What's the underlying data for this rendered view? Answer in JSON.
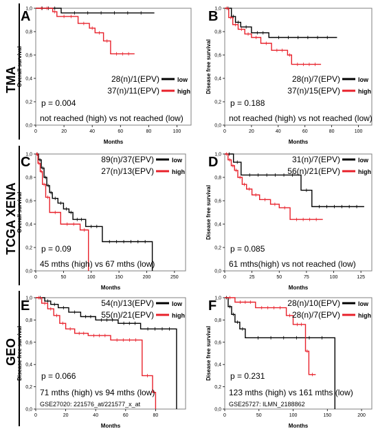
{
  "rows": [
    {
      "label": "TMA"
    },
    {
      "label": "TCGA XENA"
    },
    {
      "label": "GEO"
    }
  ],
  "colors": {
    "low": "#000000",
    "high": "#e8202a",
    "frame": "#7f7f7f"
  },
  "chart_data": [
    {
      "panel": "A",
      "type": "line",
      "ylabel": "Overall survival",
      "xlabel": "Months",
      "xlim": [
        0,
        110
      ],
      "xticks": [
        "0",
        "20",
        "40",
        "60",
        "80",
        "100"
      ],
      "xtick_values": [
        0,
        20,
        40,
        60,
        80,
        100
      ],
      "ylim": [
        0,
        1
      ],
      "yticks": [
        "0,0",
        "0,2",
        "0,4",
        "0,6",
        "0,8",
        "1,0"
      ],
      "grid": false,
      "legend": [
        {
          "name": "low",
          "counts": "28(n)/1(EPV)"
        },
        {
          "name": "high",
          "counts": "37(n)/11(EPV)"
        }
      ],
      "legend_position": "bottom-right",
      "pvalue": "p = 0.004",
      "annotation": "not reached (high) vs not reached (low)",
      "note": "",
      "series": [
        {
          "name": "low",
          "x": [
            0,
            18,
            18,
            84
          ],
          "y": [
            1.0,
            1.0,
            0.96,
            0.96
          ]
        },
        {
          "name": "high",
          "x": [
            0,
            12,
            12,
            15,
            15,
            30,
            30,
            38,
            38,
            42,
            42,
            48,
            48,
            53,
            53,
            70
          ],
          "y": [
            1.0,
            1.0,
            0.97,
            0.97,
            0.93,
            0.93,
            0.87,
            0.87,
            0.83,
            0.83,
            0.79,
            0.79,
            0.72,
            0.72,
            0.61,
            0.61
          ]
        }
      ]
    },
    {
      "panel": "B",
      "type": "line",
      "ylabel": "Disease free survival",
      "xlabel": "Months",
      "xlim": [
        0,
        110
      ],
      "xticks": [
        "0",
        "20",
        "40",
        "60",
        "80",
        "100"
      ],
      "xtick_values": [
        0,
        20,
        40,
        60,
        80,
        100
      ],
      "ylim": [
        0,
        1
      ],
      "yticks": [
        "0,0",
        "0,2",
        "0,4",
        "0,6",
        "0,8",
        "1,0"
      ],
      "grid": false,
      "legend": [
        {
          "name": "low",
          "counts": "28(n)/7(EPV)"
        },
        {
          "name": "high",
          "counts": "37(n)/15(EPV)"
        }
      ],
      "legend_position": "bottom-right",
      "pvalue": "p = 0.188",
      "annotation": "not reached (high) vs not reached (low)",
      "note": "",
      "series": [
        {
          "name": "low",
          "x": [
            0,
            5,
            5,
            8,
            8,
            12,
            12,
            20,
            20,
            33,
            33,
            84
          ],
          "y": [
            1.0,
            1.0,
            0.93,
            0.93,
            0.88,
            0.88,
            0.84,
            0.84,
            0.79,
            0.79,
            0.75,
            0.75
          ]
        },
        {
          "name": "high",
          "x": [
            0,
            3,
            3,
            6,
            6,
            10,
            10,
            15,
            15,
            20,
            20,
            27,
            27,
            35,
            35,
            47,
            47,
            50,
            50,
            72
          ],
          "y": [
            1.0,
            1.0,
            0.92,
            0.92,
            0.86,
            0.86,
            0.82,
            0.82,
            0.78,
            0.78,
            0.75,
            0.75,
            0.7,
            0.7,
            0.64,
            0.64,
            0.6,
            0.6,
            0.52,
            0.52
          ]
        }
      ]
    },
    {
      "panel": "C",
      "type": "line",
      "ylabel": "Overall survival",
      "xlabel": "Months",
      "xlim": [
        0,
        270
      ],
      "xticks": [
        "0",
        "50",
        "100",
        "150",
        "200",
        "250"
      ],
      "xtick_values": [
        0,
        50,
        100,
        150,
        200,
        250
      ],
      "ylim": [
        0,
        1
      ],
      "yticks": [
        "0,0",
        "0,2",
        "0,4",
        "0,6",
        "0,8",
        "1,0"
      ],
      "grid": false,
      "legend": [
        {
          "name": "low",
          "counts": "89(n)/37(EPV)"
        },
        {
          "name": "high",
          "counts": "27(n)/13(EPV)"
        }
      ],
      "legend_position": "top-right",
      "pvalue": "p = 0.09",
      "annotation": "45 mths (high) vs 67 mths (low)",
      "note": "",
      "series": [
        {
          "name": "low",
          "x": [
            0,
            5,
            5,
            10,
            10,
            15,
            15,
            20,
            20,
            25,
            25,
            30,
            30,
            40,
            40,
            50,
            50,
            60,
            60,
            67,
            67,
            90,
            90,
            120,
            120,
            210,
            210
          ],
          "y": [
            1.0,
            1.0,
            0.95,
            0.95,
            0.88,
            0.88,
            0.8,
            0.8,
            0.73,
            0.73,
            0.67,
            0.67,
            0.62,
            0.62,
            0.58,
            0.58,
            0.53,
            0.53,
            0.5,
            0.5,
            0.44,
            0.44,
            0.38,
            0.38,
            0.25,
            0.25,
            0.0
          ]
        },
        {
          "name": "high",
          "x": [
            0,
            4,
            4,
            8,
            8,
            12,
            12,
            18,
            18,
            25,
            25,
            45,
            45,
            80,
            80,
            95,
            95
          ],
          "y": [
            1.0,
            1.0,
            0.92,
            0.92,
            0.85,
            0.85,
            0.74,
            0.74,
            0.63,
            0.63,
            0.5,
            0.5,
            0.4,
            0.4,
            0.35,
            0.35,
            0.0
          ]
        }
      ]
    },
    {
      "panel": "D",
      "type": "line",
      "ylabel": "Disease free survival",
      "xlabel": "Months",
      "xlim": [
        0,
        135
      ],
      "xticks": [
        "0",
        "25",
        "50",
        "75",
        "100",
        "125"
      ],
      "xtick_values": [
        0,
        25,
        50,
        75,
        100,
        125
      ],
      "ylim": [
        0,
        1
      ],
      "yticks": [
        "0,0",
        "0,2",
        "0,4",
        "0,6",
        "0,8",
        "1,0"
      ],
      "grid": false,
      "legend": [
        {
          "name": "low",
          "counts": "31(n)/7(EPV)"
        },
        {
          "name": "high",
          "counts": "56(n)/21(EPV)"
        }
      ],
      "legend_position": "top-right",
      "pvalue": "p = 0.085",
      "annotation": "61 mths(high) vs not reached (low)",
      "note": "",
      "series": [
        {
          "name": "low",
          "x": [
            0,
            8,
            8,
            15,
            15,
            70,
            70,
            80,
            80,
            128
          ],
          "y": [
            1.0,
            1.0,
            0.93,
            0.93,
            0.82,
            0.82,
            0.69,
            0.69,
            0.55,
            0.55
          ]
        },
        {
          "name": "high",
          "x": [
            0,
            3,
            3,
            6,
            6,
            9,
            9,
            12,
            12,
            16,
            16,
            20,
            20,
            25,
            25,
            32,
            32,
            42,
            42,
            50,
            50,
            60,
            60,
            90
          ],
          "y": [
            1.0,
            1.0,
            0.95,
            0.95,
            0.9,
            0.9,
            0.86,
            0.86,
            0.8,
            0.8,
            0.74,
            0.74,
            0.7,
            0.7,
            0.65,
            0.65,
            0.61,
            0.61,
            0.57,
            0.57,
            0.54,
            0.54,
            0.44,
            0.44
          ]
        }
      ]
    },
    {
      "panel": "E",
      "type": "line",
      "ylabel": "Disease free survival",
      "xlabel": "Months",
      "xlim": [
        0,
        100
      ],
      "xticks": [
        "0",
        "20",
        "40",
        "60",
        "80"
      ],
      "xtick_values": [
        0,
        20,
        40,
        60,
        80
      ],
      "ylim": [
        0,
        1
      ],
      "yticks": [
        "0,0",
        "0,2",
        "0,4",
        "0,6",
        "0,8",
        "1,0"
      ],
      "grid": false,
      "legend": [
        {
          "name": "low",
          "counts": "54(n)/13(EPV)"
        },
        {
          "name": "high",
          "counts": "55(n)/21(EPV)"
        }
      ],
      "legend_position": "top-right",
      "pvalue": "p = 0.066",
      "annotation": "71 mths (high) vs 94 mths (low)",
      "note": "GSE27020: 221576_at/221577_x_at",
      "series": [
        {
          "name": "low",
          "x": [
            0,
            6,
            6,
            10,
            10,
            15,
            15,
            22,
            22,
            30,
            30,
            40,
            40,
            55,
            55,
            70,
            70,
            94,
            94
          ],
          "y": [
            1.0,
            1.0,
            0.97,
            0.97,
            0.94,
            0.94,
            0.91,
            0.91,
            0.87,
            0.87,
            0.83,
            0.83,
            0.8,
            0.8,
            0.77,
            0.77,
            0.72,
            0.72,
            0.0
          ]
        },
        {
          "name": "high",
          "x": [
            0,
            4,
            4,
            8,
            8,
            12,
            12,
            16,
            16,
            20,
            20,
            26,
            26,
            35,
            35,
            50,
            50,
            71,
            71,
            78,
            78,
            80,
            80
          ],
          "y": [
            1.0,
            1.0,
            0.95,
            0.95,
            0.9,
            0.9,
            0.84,
            0.84,
            0.77,
            0.77,
            0.72,
            0.72,
            0.68,
            0.68,
            0.66,
            0.66,
            0.62,
            0.62,
            0.3,
            0.3,
            0.15,
            0.15,
            0.0
          ]
        }
      ]
    },
    {
      "panel": "F",
      "type": "line",
      "ylabel": "Disease free survival",
      "xlabel": "Months",
      "xlim": [
        0,
        215
      ],
      "xticks": [
        "0",
        "50",
        "100",
        "150",
        "200"
      ],
      "xtick_values": [
        0,
        50,
        100,
        150,
        200
      ],
      "ylim": [
        0,
        1
      ],
      "yticks": [
        "0,0",
        "0,2",
        "0,4",
        "0,6",
        "0,8",
        "1,0"
      ],
      "grid": false,
      "legend": [
        {
          "name": "low",
          "counts": "28(n)/10(EPV)"
        },
        {
          "name": "high",
          "counts": "28(n)/7(EPV)"
        }
      ],
      "legend_position": "top-right",
      "pvalue": "p = 0.231",
      "annotation": "123 mths (high) vs 161 mths (low)",
      "note": "GSE25727: ILMN_2188862",
      "series": [
        {
          "name": "low",
          "x": [
            0,
            5,
            5,
            10,
            10,
            15,
            15,
            22,
            22,
            30,
            30,
            161,
            161
          ],
          "y": [
            1.0,
            1.0,
            0.92,
            0.92,
            0.85,
            0.85,
            0.78,
            0.78,
            0.72,
            0.72,
            0.64,
            0.64,
            0.0
          ]
        },
        {
          "name": "high",
          "x": [
            0,
            15,
            15,
            45,
            45,
            90,
            90,
            100,
            100,
            118,
            118,
            123,
            123,
            133
          ],
          "y": [
            1.0,
            1.0,
            0.96,
            0.96,
            0.91,
            0.91,
            0.84,
            0.84,
            0.76,
            0.76,
            0.52,
            0.52,
            0.31,
            0.31
          ]
        }
      ]
    }
  ]
}
